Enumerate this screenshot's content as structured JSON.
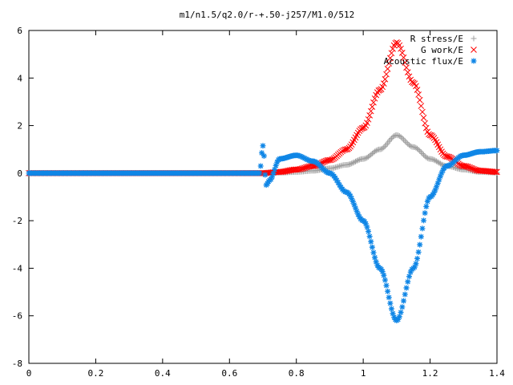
{
  "chart_data": {
    "type": "scatter",
    "title": "m1/n1.5/q2.0/r-+.50-j257/M1.0/512",
    "xlim": [
      0,
      1.4
    ],
    "ylim": [
      -8,
      6
    ],
    "x_ticks": [
      "0",
      "0.2",
      "0.4",
      "0.6",
      "0.8",
      "1",
      "1.2",
      "1.4"
    ],
    "y_ticks": [
      "-8",
      "-6",
      "-4",
      "-2",
      "0",
      "2",
      "4",
      "6"
    ],
    "x_tick_values": [
      0,
      0.2,
      0.4,
      0.6,
      0.8,
      1.0,
      1.2,
      1.4
    ],
    "y_tick_values": [
      -8,
      -6,
      -4,
      -2,
      0,
      2,
      4,
      6
    ],
    "grid": false,
    "legend_position": "top-right",
    "series": [
      {
        "name": "R stress/E",
        "marker": "plus",
        "color": "#a0a0a0",
        "x": [
          0.0,
          0.1,
          0.2,
          0.3,
          0.4,
          0.5,
          0.6,
          0.7,
          0.75,
          0.8,
          0.85,
          0.9,
          0.95,
          1.0,
          1.05,
          1.1,
          1.15,
          1.2,
          1.25,
          1.3,
          1.35,
          1.4
        ],
        "y": [
          0.0,
          0.0,
          0.0,
          0.0,
          0.0,
          0.0,
          0.0,
          0.0,
          0.02,
          0.05,
          0.1,
          0.2,
          0.35,
          0.6,
          1.0,
          1.6,
          1.1,
          0.6,
          0.3,
          0.15,
          0.05,
          0.02
        ]
      },
      {
        "name": "G work/E",
        "marker": "cross",
        "color": "#ff0000",
        "x": [
          0.0,
          0.1,
          0.2,
          0.3,
          0.4,
          0.5,
          0.6,
          0.7,
          0.75,
          0.8,
          0.85,
          0.9,
          0.95,
          1.0,
          1.05,
          1.1,
          1.15,
          1.2,
          1.25,
          1.3,
          1.35,
          1.4
        ],
        "y": [
          0.0,
          0.0,
          0.0,
          0.0,
          0.0,
          0.0,
          0.0,
          0.0,
          0.05,
          0.15,
          0.3,
          0.55,
          1.0,
          1.9,
          3.5,
          5.5,
          3.8,
          1.6,
          0.7,
          0.3,
          0.1,
          0.05
        ]
      },
      {
        "name": "Acoustic flux/E",
        "marker": "star",
        "color": "#0f86e6",
        "x": [
          0.0,
          0.1,
          0.2,
          0.3,
          0.4,
          0.5,
          0.6,
          0.69,
          0.7,
          0.71,
          0.72,
          0.75,
          0.8,
          0.85,
          0.9,
          0.95,
          1.0,
          1.05,
          1.1,
          1.15,
          1.2,
          1.25,
          1.3,
          1.35,
          1.4
        ],
        "y": [
          0.0,
          0.0,
          0.0,
          0.0,
          0.0,
          0.0,
          0.0,
          0.0,
          1.15,
          -0.5,
          -0.3,
          0.6,
          0.75,
          0.5,
          0.0,
          -0.8,
          -2.0,
          -4.0,
          -6.2,
          -4.0,
          -1.0,
          0.3,
          0.75,
          0.9,
          0.95
        ]
      }
    ]
  }
}
